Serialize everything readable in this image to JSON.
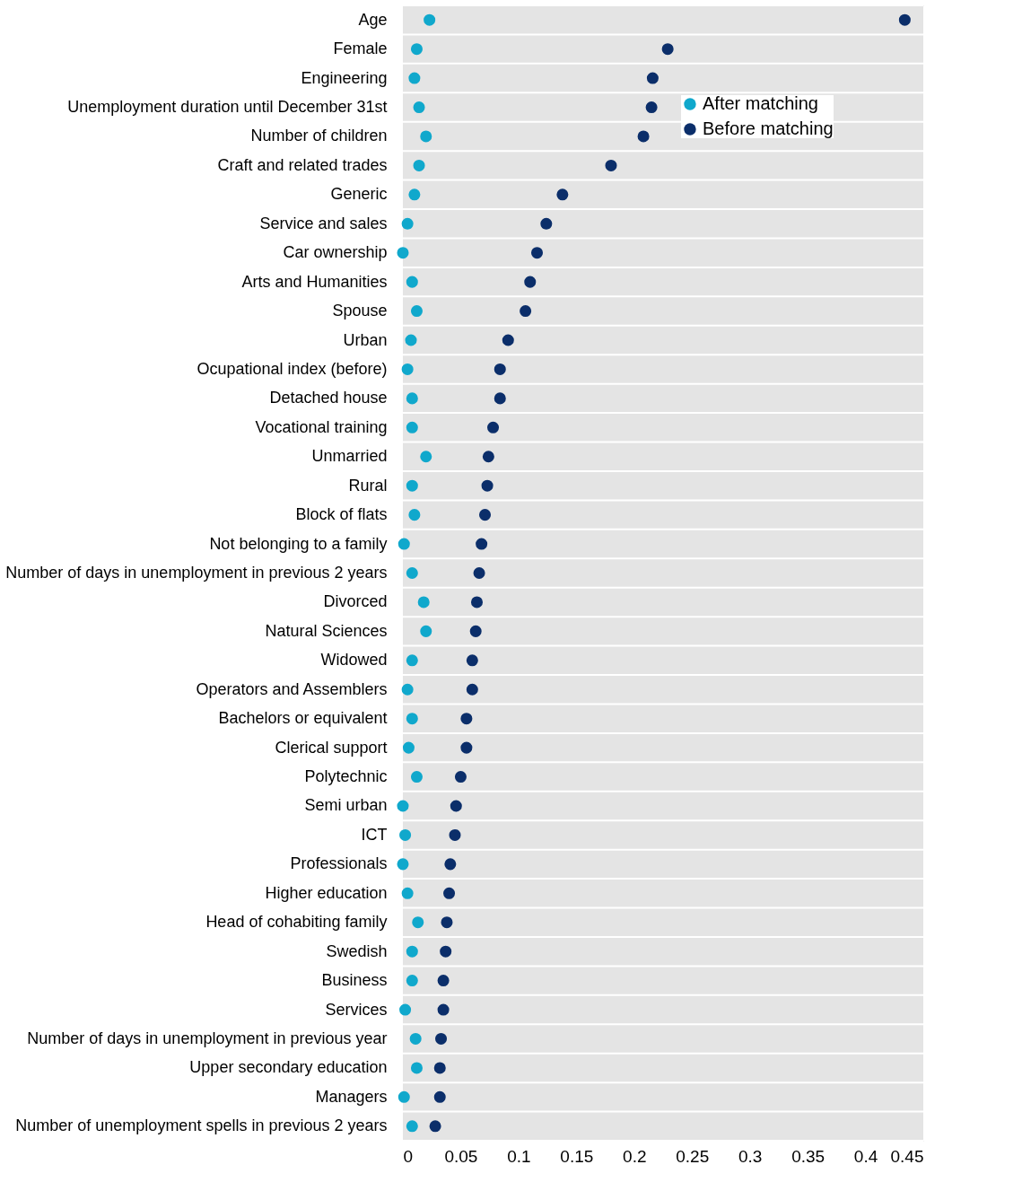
{
  "chart_data": {
    "type": "scatter",
    "orientation": "horizontal",
    "categories": [
      "Age",
      "Female",
      "Engineering",
      "Unemployment duration until December 31st",
      "Number of children",
      "Craft and related trades",
      "Generic",
      "Service and sales",
      "Car ownership",
      "Arts and Humanities",
      "Spouse",
      "Urban",
      "Ocupational index (before)",
      "Detached house",
      "Vocational training",
      "Unmarried",
      "Rural",
      "Block of flats",
      "Not belonging to a family",
      "Number of days in unemployment in previous 2 years",
      "Divorced",
      "Natural Sciences",
      "Widowed",
      "Operators and Assemblers",
      "Bachelors or equivalent",
      "Clerical support",
      "Polytechnic",
      "Semi urban",
      "ICT",
      "Professionals",
      "Higher education",
      "Head of cohabiting family",
      "Swedish",
      "Business",
      "Services",
      "Number of days in unemployment in previous year",
      "Upper secondary education",
      "Managers",
      "Number of unemployment spells in previous 2 years"
    ],
    "series": [
      {
        "name": "After matching",
        "color": "#10a8cc",
        "values": [
          0.023,
          0.012,
          0.01,
          0.014,
          0.02,
          0.014,
          0.01,
          0.004,
          0.0,
          0.008,
          0.012,
          0.007,
          0.004,
          0.008,
          0.008,
          0.02,
          0.008,
          0.01,
          0.001,
          0.008,
          0.018,
          0.02,
          0.008,
          0.004,
          0.008,
          0.005,
          0.012,
          0.0,
          0.002,
          0.0,
          0.004,
          0.013,
          0.008,
          0.008,
          0.002,
          0.011,
          0.012,
          0.001,
          0.008
        ]
      },
      {
        "name": "Before matching",
        "color": "#0b2e6a",
        "values": [
          0.434,
          0.229,
          0.216,
          0.215,
          0.208,
          0.18,
          0.138,
          0.124,
          0.116,
          0.11,
          0.106,
          0.091,
          0.084,
          0.084,
          0.078,
          0.074,
          0.073,
          0.071,
          0.068,
          0.066,
          0.064,
          0.063,
          0.06,
          0.06,
          0.055,
          0.055,
          0.05,
          0.046,
          0.045,
          0.041,
          0.04,
          0.038,
          0.037,
          0.035,
          0.035,
          0.033,
          0.032,
          0.032,
          0.028
        ]
      }
    ],
    "xlim": [
      0,
      0.45
    ],
    "xticks": [
      0,
      0.05,
      0.1,
      0.15,
      0.2,
      0.25,
      0.3,
      0.35,
      0.4,
      0.45
    ],
    "grid": true,
    "legend": "top right",
    "marker": "circle"
  }
}
